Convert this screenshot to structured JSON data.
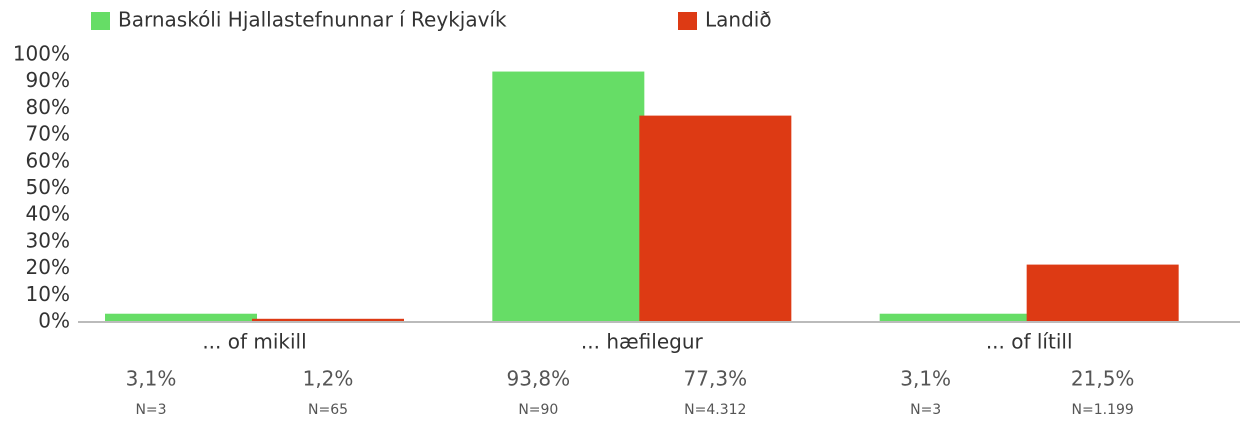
{
  "chart_data": {
    "type": "bar",
    "categories": [
      "... of mikill",
      "... hæfilegur",
      "... of lítill"
    ],
    "series": [
      {
        "name": "Barnaskóli Hjallastefnunnar í Reykjavík",
        "color": "#66dd66",
        "values": [
          3.1,
          93.8,
          3.1
        ],
        "value_labels": [
          "3,1%",
          "93,8%",
          "3,1%"
        ],
        "n_labels": [
          "N=3",
          "N=90",
          "N=3"
        ]
      },
      {
        "name": "Landið",
        "color": "#dd3a14",
        "values": [
          1.2,
          77.3,
          21.5
        ],
        "value_labels": [
          "1,2%",
          "77,3%",
          "21,5%"
        ],
        "n_labels": [
          "N=65",
          "N=4.312",
          "N=1.199"
        ]
      }
    ],
    "ylim": [
      0,
      100
    ],
    "yticks": [
      {
        "value": 0,
        "label": "0%"
      },
      {
        "value": 10,
        "label": "10%"
      },
      {
        "value": 20,
        "label": "20%"
      },
      {
        "value": 30,
        "label": "30%"
      },
      {
        "value": 40,
        "label": "40%"
      },
      {
        "value": 50,
        "label": "50%"
      },
      {
        "value": 60,
        "label": "60%"
      },
      {
        "value": 70,
        "label": "70%"
      },
      {
        "value": 80,
        "label": "80%"
      },
      {
        "value": 90,
        "label": "90%"
      },
      {
        "value": 100,
        "label": "100%"
      }
    ]
  }
}
